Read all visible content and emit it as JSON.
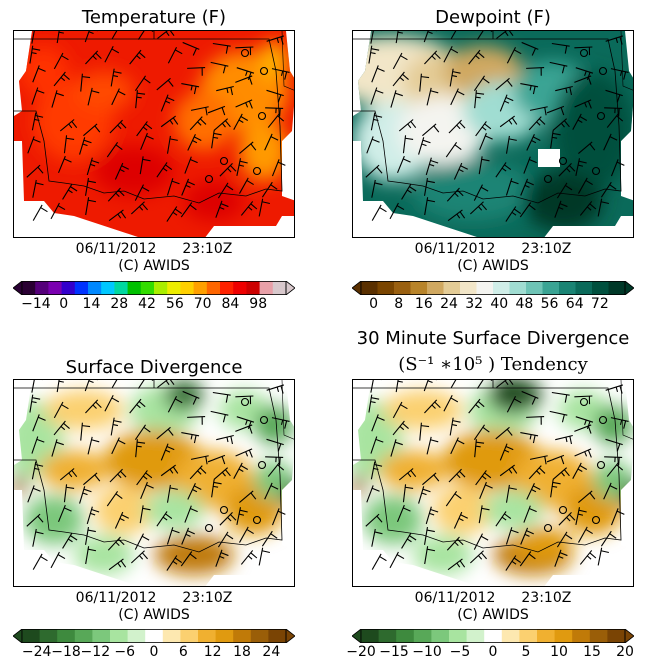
{
  "panels": [
    {
      "id": "temperature",
      "title": "Temperature (F)",
      "date": "06/11/2012",
      "time": "23:10Z",
      "credit": "(C) AWIDS",
      "colorbar_ticks": [
        "−14",
        "0",
        "14",
        "28",
        "42",
        "56",
        "70",
        "84",
        "98"
      ],
      "colorbar_range": [
        -21,
        112
      ],
      "colorbar_colors": [
        "#2a0033",
        "#55007a",
        "#7a00b0",
        "#3300cc",
        "#0033ff",
        "#0088ff",
        "#00c8ff",
        "#00d8a0",
        "#00c000",
        "#33dd00",
        "#aaee00",
        "#eeee00",
        "#ffd000",
        "#ffa000",
        "#ff6600",
        "#ff2200",
        "#ee0000",
        "#cc0000",
        "#e8a0a8",
        "#d8c8cc"
      ]
    },
    {
      "id": "dewpoint",
      "title": "Dewpoint (F)",
      "date": "06/11/2012",
      "time": "23:10Z",
      "credit": "(C) AWIDS",
      "colorbar_ticks": [
        "0",
        "8",
        "16",
        "24",
        "32",
        "40",
        "48",
        "56",
        "64",
        "72"
      ],
      "colorbar_range": [
        -4,
        80
      ],
      "colorbar_colors": [
        "#5a3000",
        "#7a4500",
        "#9a6010",
        "#b8842a",
        "#d0a860",
        "#e4cc96",
        "#f2e6c8",
        "#f4f4f0",
        "#d0eee8",
        "#a0ddd2",
        "#6ec4b6",
        "#3aa494",
        "#1a8474",
        "#0a6a5a",
        "#00503e",
        "#003828"
      ]
    },
    {
      "id": "divergence",
      "title": "Surface Divergence",
      "date": "06/11/2012",
      "time": "23:10Z",
      "credit": "(C) AWIDS",
      "colorbar_ticks": [
        "−24",
        "−18",
        "−12",
        "−6",
        "0",
        "6",
        "12",
        "18",
        "24"
      ],
      "colorbar_range": [
        -27,
        27
      ],
      "colorbar_colors": [
        "#1e4a1e",
        "#2e6a2e",
        "#3e8a3e",
        "#58a858",
        "#7cc87c",
        "#a8e4a0",
        "#d2f2cc",
        "#ffffff",
        "#fde8b0",
        "#fbd070",
        "#f0b030",
        "#e09a10",
        "#c07a08",
        "#9a5e08",
        "#7a4404"
      ]
    },
    {
      "id": "tendency",
      "title_line1": "30 Minute Surface Divergence",
      "title_line2": "(S⁻¹ ∗10⁵ ) Tendency",
      "date": "06/11/2012",
      "time": "23:10Z",
      "credit": "(C) AWIDS",
      "colorbar_ticks": [
        "−20",
        "−15",
        "−10",
        "−5",
        "0",
        "5",
        "10",
        "15",
        "20"
      ],
      "colorbar_range": [
        -20,
        20
      ],
      "colorbar_colors": [
        "#1e4a1e",
        "#2e6a2e",
        "#3e8a3e",
        "#58a858",
        "#7cc87c",
        "#a8e4a0",
        "#d2f2cc",
        "#ffffff",
        "#fde8b0",
        "#fbd070",
        "#f0b030",
        "#e09a10",
        "#c07a08",
        "#9a5e08",
        "#7a4404"
      ]
    }
  ]
}
